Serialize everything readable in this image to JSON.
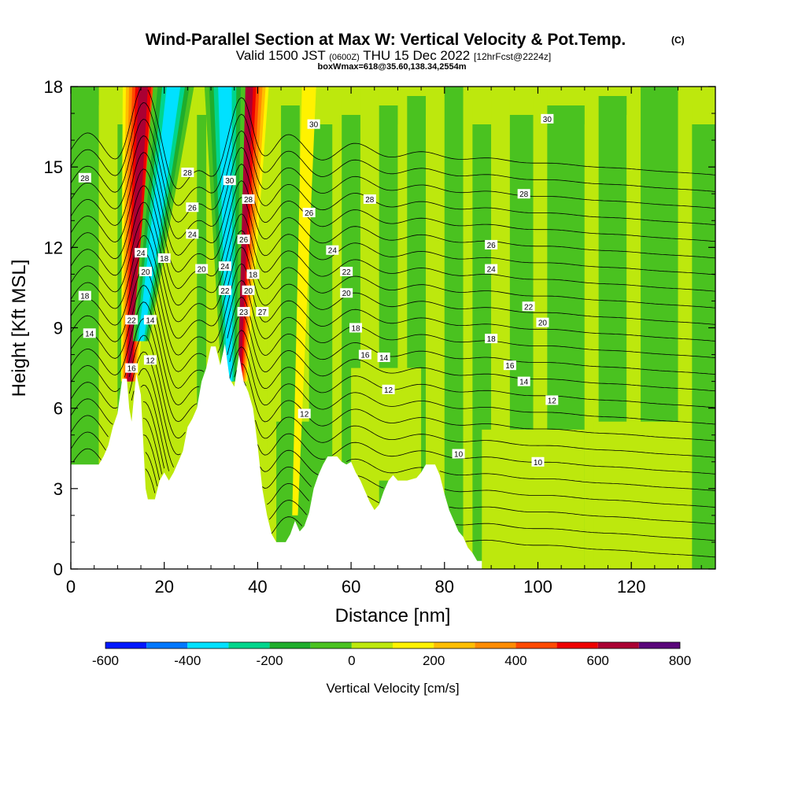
{
  "title": {
    "main": "Wind-Parallel Section at Max W: Vertical Velocity & Pot.Temp.",
    "copyright": "(C)",
    "valid_prefix": "Valid 1500 JST",
    "valid_utc": "(0600Z)",
    "valid_date": "THU 15 Dec 2022",
    "forecast": "[12hrFcst@2224z]",
    "box": "boxWmax=618@35.60,138.34,2554m"
  },
  "chart_data": {
    "type": "heatmap",
    "xlabel": "Distance [nm]",
    "ylabel": "Height [Kft MSL]",
    "x_range": [
      0,
      138
    ],
    "y_range": [
      0,
      18
    ],
    "x_ticks": [
      0,
      20,
      40,
      60,
      80,
      100,
      120
    ],
    "y_ticks": [
      0,
      3,
      6,
      9,
      12,
      15,
      18
    ],
    "grid": false,
    "colorbar": {
      "label": "Vertical Velocity [cm/s]",
      "position": "bottom",
      "tick_values": [
        -600,
        -400,
        -200,
        0,
        200,
        400,
        600,
        800
      ],
      "bins": [
        {
          "from": -600,
          "to": -500,
          "color": "#0018ff"
        },
        {
          "from": -500,
          "to": -400,
          "color": "#0078ff"
        },
        {
          "from": -400,
          "to": -300,
          "color": "#00e1ff"
        },
        {
          "from": -300,
          "to": -200,
          "color": "#00d58c"
        },
        {
          "from": -200,
          "to": -100,
          "color": "#1fad2c"
        },
        {
          "from": -100,
          "to": 0,
          "color": "#4ac220"
        },
        {
          "from": 0,
          "to": 100,
          "color": "#bde80d"
        },
        {
          "from": 100,
          "to": 200,
          "color": "#fff200"
        },
        {
          "from": 200,
          "to": 300,
          "color": "#ffbe00"
        },
        {
          "from": 300,
          "to": 400,
          "color": "#ff8c00"
        },
        {
          "from": 400,
          "to": 500,
          "color": "#ff4a00"
        },
        {
          "from": 500,
          "to": 600,
          "color": "#ee0000"
        },
        {
          "from": 600,
          "to": 700,
          "color": "#aa0033"
        },
        {
          "from": 700,
          "to": 800,
          "color": "#5a067a"
        }
      ]
    },
    "terrain": [
      [
        0,
        3.9
      ],
      [
        4,
        3.9
      ],
      [
        6,
        3.9
      ],
      [
        7,
        4.2
      ],
      [
        8,
        4.6
      ],
      [
        9,
        5.3
      ],
      [
        10,
        5.8
      ],
      [
        11,
        7.1
      ],
      [
        12,
        7.1
      ],
      [
        12.5,
        6.0
      ],
      [
        13,
        5.5
      ],
      [
        14,
        7.3
      ],
      [
        15,
        6.5
      ],
      [
        16,
        3.0
      ],
      [
        16.5,
        2.6
      ],
      [
        18,
        2.6
      ],
      [
        19,
        3.3
      ],
      [
        20,
        3.6
      ],
      [
        21,
        3.3
      ],
      [
        22,
        3.6
      ],
      [
        23,
        4.0
      ],
      [
        24,
        4.4
      ],
      [
        25,
        5.3
      ],
      [
        26,
        5.6
      ],
      [
        27,
        6.0
      ],
      [
        28,
        7.0
      ],
      [
        29,
        7.5
      ],
      [
        30,
        8.3
      ],
      [
        31,
        8.3
      ],
      [
        32,
        7.6
      ],
      [
        33,
        8.4
      ],
      [
        34,
        7.1
      ],
      [
        35,
        6.8
      ],
      [
        36,
        8.0
      ],
      [
        37,
        7.0
      ],
      [
        38,
        6.6
      ],
      [
        39,
        6.0
      ],
      [
        40,
        4.6
      ],
      [
        41,
        3.0
      ],
      [
        42,
        2.0
      ],
      [
        43,
        1.3
      ],
      [
        44,
        1.0
      ],
      [
        46,
        1.0
      ],
      [
        47,
        1.3
      ],
      [
        48,
        1.8
      ],
      [
        49,
        1.4
      ],
      [
        50,
        1.6
      ],
      [
        51,
        2.1
      ],
      [
        52,
        3.0
      ],
      [
        53,
        3.5
      ],
      [
        54,
        3.9
      ],
      [
        55,
        4.2
      ],
      [
        57,
        4.2
      ],
      [
        58,
        4.0
      ],
      [
        59,
        3.9
      ],
      [
        60,
        4.0
      ],
      [
        61,
        3.6
      ],
      [
        62,
        3.3
      ],
      [
        63,
        2.9
      ],
      [
        64,
        2.5
      ],
      [
        65,
        2.2
      ],
      [
        66,
        2.4
      ],
      [
        67,
        2.9
      ],
      [
        68,
        3.3
      ],
      [
        69,
        3.5
      ],
      [
        70,
        3.3
      ],
      [
        72,
        3.3
      ],
      [
        74,
        3.4
      ],
      [
        75,
        3.6
      ],
      [
        76,
        3.9
      ],
      [
        78,
        3.9
      ],
      [
        79,
        3.5
      ],
      [
        80,
        2.8
      ],
      [
        81,
        2.2
      ],
      [
        82,
        1.8
      ],
      [
        83,
        1.4
      ],
      [
        84,
        1.2
      ],
      [
        85,
        0.8
      ],
      [
        86,
        0.6
      ],
      [
        87,
        0.3
      ],
      [
        88,
        0.3
      ]
    ],
    "velocity_bands": [
      {
        "name": "up-1",
        "value": 650,
        "x_top": 15.5,
        "x_bottom": 12.5,
        "y_bottom": 7.0
      },
      {
        "name": "down-1",
        "value": -450,
        "x_top": 22.0,
        "x_bottom": 15.0,
        "y_bottom": 8.5
      },
      {
        "name": "up-2",
        "value": 650,
        "x_top": 38.0,
        "x_bottom": 36.0,
        "y_bottom": 7.0
      },
      {
        "name": "down-2",
        "value": -450,
        "x_top": 33.0,
        "x_bottom": 34.0,
        "y_bottom": 7.0
      },
      {
        "name": "weak-up",
        "value": 150,
        "x_top": 51.0,
        "x_bottom": 48.0,
        "y_bottom": 2.0
      }
    ],
    "isentrope_labels": [
      {
        "text": "30",
        "x": 52,
        "y": 16.6
      },
      {
        "text": "30",
        "x": 102,
        "y": 16.8
      },
      {
        "text": "28",
        "x": 3,
        "y": 14.6
      },
      {
        "text": "28",
        "x": 25,
        "y": 14.8
      },
      {
        "text": "28",
        "x": 64,
        "y": 13.8
      },
      {
        "text": "28",
        "x": 97,
        "y": 14.0
      },
      {
        "text": "26",
        "x": 26,
        "y": 13.5
      },
      {
        "text": "26",
        "x": 51,
        "y": 13.3
      },
      {
        "text": "26",
        "x": 90,
        "y": 12.1
      },
      {
        "text": "24",
        "x": 15,
        "y": 11.8
      },
      {
        "text": "24",
        "x": 26,
        "y": 12.5
      },
      {
        "text": "24",
        "x": 56,
        "y": 11.9
      },
      {
        "text": "24",
        "x": 90,
        "y": 11.2
      },
      {
        "text": "22",
        "x": 59,
        "y": 11.1
      },
      {
        "text": "22",
        "x": 13,
        "y": 9.3
      },
      {
        "text": "22",
        "x": 98,
        "y": 9.8
      },
      {
        "text": "20",
        "x": 16,
        "y": 11.1
      },
      {
        "text": "20",
        "x": 28,
        "y": 11.2
      },
      {
        "text": "20",
        "x": 59,
        "y": 10.3
      },
      {
        "text": "20",
        "x": 101,
        "y": 9.2
      },
      {
        "text": "18",
        "x": 3,
        "y": 10.2
      },
      {
        "text": "18",
        "x": 20,
        "y": 11.6
      },
      {
        "text": "18",
        "x": 61,
        "y": 9.0
      },
      {
        "text": "18",
        "x": 90,
        "y": 8.6
      },
      {
        "text": "16",
        "x": 13,
        "y": 7.5
      },
      {
        "text": "16",
        "x": 63,
        "y": 8.0
      },
      {
        "text": "16",
        "x": 94,
        "y": 7.6
      },
      {
        "text": "14",
        "x": 4,
        "y": 8.8
      },
      {
        "text": "14",
        "x": 17,
        "y": 9.3
      },
      {
        "text": "14",
        "x": 67,
        "y": 7.9
      },
      {
        "text": "14",
        "x": 97,
        "y": 7.0
      },
      {
        "text": "12",
        "x": 17,
        "y": 7.8
      },
      {
        "text": "12",
        "x": 50,
        "y": 5.8
      },
      {
        "text": "12",
        "x": 68,
        "y": 6.7
      },
      {
        "text": "12",
        "x": 103,
        "y": 6.3
      },
      {
        "text": "10",
        "x": 83,
        "y": 4.3
      },
      {
        "text": "10",
        "x": 100,
        "y": 4.0
      },
      {
        "text": "30",
        "x": 34,
        "y": 14.5
      },
      {
        "text": "28",
        "x": 38,
        "y": 13.8
      },
      {
        "text": "26",
        "x": 37,
        "y": 12.3
      },
      {
        "text": "24",
        "x": 33,
        "y": 11.3
      },
      {
        "text": "22",
        "x": 33,
        "y": 10.4
      },
      {
        "text": "20",
        "x": 38,
        "y": 10.4
      },
      {
        "text": "18",
        "x": 39,
        "y": 11.0
      },
      {
        "text": "23",
        "x": 37,
        "y": 9.6
      },
      {
        "text": "27",
        "x": 41,
        "y": 9.6
      }
    ]
  }
}
